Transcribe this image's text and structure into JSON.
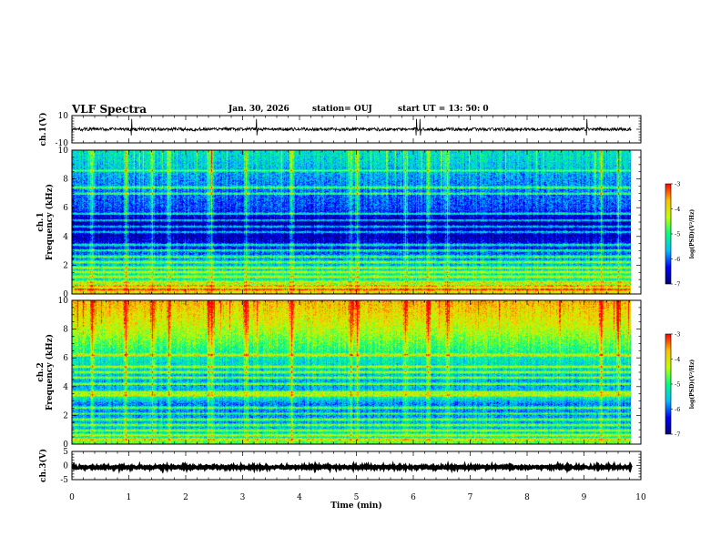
{
  "header": {
    "title": "VLF Spectra",
    "date": "Jan. 30, 2026",
    "station": "station= OUJ",
    "start": "start  UT =   13: 50: 0"
  },
  "colors": {
    "colormap": [
      "#00007f",
      "#0000ff",
      "#00bfff",
      "#00ff7f",
      "#bfff00",
      "#ffbf00",
      "#ff0000"
    ],
    "waveform": "#000000"
  },
  "chart_data": [
    {
      "type": "line",
      "name": "ch1-waveform",
      "ylabel": "ch.1(V)",
      "ylim": [
        -10,
        10
      ],
      "ytick_labels": [
        "10",
        "-10"
      ],
      "baseline": 0,
      "noise_amplitude": 1.2,
      "spike_times_min": [
        1.05,
        3.25,
        6.05,
        6.12,
        9.05
      ]
    },
    {
      "type": "heatmap",
      "name": "ch1-spectrogram",
      "ylabel": "ch.1\nFrequency  (kHz)",
      "ylim": [
        0,
        10
      ],
      "ytick_labels": [
        "0",
        "2",
        "4",
        "6",
        "8",
        "10"
      ],
      "xlim": [
        0,
        9.83
      ],
      "colorbar": {
        "label": "log(PSD)(V²/Hz)",
        "range": [
          -7,
          -3
        ],
        "tick_labels": [
          "-3",
          "-4",
          "-5",
          "-6",
          "-7"
        ]
      },
      "profile_kHz": [
        [
          0,
          -3.8
        ],
        [
          0.4,
          -4.6
        ],
        [
          0.9,
          -5.2
        ],
        [
          1.6,
          -5.4
        ],
        [
          2.4,
          -5.8
        ],
        [
          3.2,
          -6.3
        ],
        [
          4.0,
          -6.7
        ],
        [
          5.0,
          -6.8
        ],
        [
          6.0,
          -6.1
        ],
        [
          7.0,
          -6.0
        ],
        [
          8.0,
          -5.8
        ],
        [
          9.0,
          -5.5
        ],
        [
          10,
          -5.3
        ]
      ],
      "lines_kHz": [
        0.3,
        0.55,
        0.8,
        1.2,
        1.5,
        1.8,
        2.2,
        2.6,
        3.0,
        3.4,
        4.3,
        4.7,
        5.1,
        5.6,
        7.0,
        7.4,
        8.6
      ],
      "burst_times_min": [
        0.35,
        0.95,
        1.4,
        1.7,
        2.4,
        2.45,
        3.05,
        3.85,
        4.9,
        5.0,
        5.85,
        6.25,
        6.6,
        9.3,
        9.6
      ]
    },
    {
      "type": "heatmap",
      "name": "ch2-spectrogram",
      "ylabel": "ch.2\nFrequency  (kHz)",
      "ylim": [
        0,
        10
      ],
      "ytick_labels": [
        "0",
        "2",
        "4",
        "6",
        "8",
        "10"
      ],
      "xlim": [
        0,
        9.83
      ],
      "colorbar": {
        "label": "log(PSD)(V²/Hz)",
        "range": [
          -7,
          -3
        ],
        "tick_labels": [
          "-3",
          "-4",
          "-5",
          "-6",
          "-7"
        ]
      },
      "profile_kHz": [
        [
          0,
          -4.6
        ],
        [
          0.5,
          -5.3
        ],
        [
          1.0,
          -5.6
        ],
        [
          2.0,
          -5.8
        ],
        [
          2.8,
          -5.9
        ],
        [
          3.3,
          -5.1
        ],
        [
          3.8,
          -5.6
        ],
        [
          4.5,
          -5.7
        ],
        [
          5.5,
          -5.4
        ],
        [
          6.5,
          -5.0
        ],
        [
          7.5,
          -4.5
        ],
        [
          8.5,
          -4.1
        ],
        [
          10,
          -3.7
        ]
      ],
      "lines_kHz": [
        0.3,
        0.6,
        0.9,
        1.3,
        1.7,
        2.1,
        2.5,
        3.4,
        3.6,
        4.2,
        4.6,
        5.0,
        5.4,
        6.2
      ],
      "burst_times_min": [
        0.35,
        0.95,
        1.4,
        1.7,
        2.4,
        2.45,
        3.05,
        3.85,
        4.9,
        5.0,
        5.85,
        6.25,
        6.6,
        9.3,
        9.6
      ]
    },
    {
      "type": "line",
      "name": "ch3-waveform",
      "ylabel": "ch.3(V)",
      "ylim": [
        -5,
        5
      ],
      "ytick_labels": [
        "5",
        "0",
        "-5"
      ],
      "baseline": -0.6,
      "noise_amplitude": 0.35
    }
  ],
  "xaxis": {
    "label": "Time  (min)",
    "xlim": [
      0,
      10
    ],
    "tick_labels": [
      "0",
      "1",
      "2",
      "3",
      "4",
      "5",
      "6",
      "7",
      "8",
      "9",
      "10"
    ]
  }
}
